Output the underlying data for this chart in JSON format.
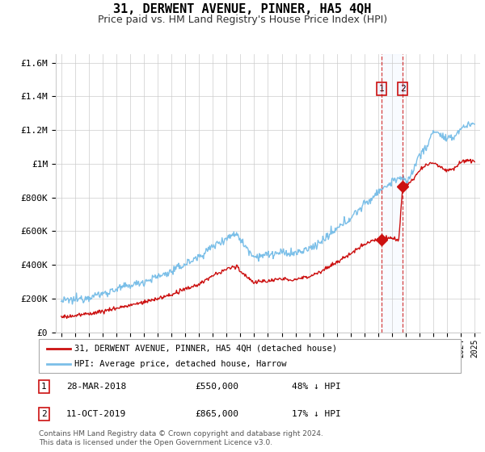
{
  "title": "31, DERWENT AVENUE, PINNER, HA5 4QH",
  "subtitle": "Price paid vs. HM Land Registry's House Price Index (HPI)",
  "title_fontsize": 11,
  "subtitle_fontsize": 9,
  "ylabel_ticks": [
    "£0",
    "£200K",
    "£400K",
    "£600K",
    "£800K",
    "£1M",
    "£1.2M",
    "£1.4M",
    "£1.6M"
  ],
  "ytick_values": [
    0,
    200000,
    400000,
    600000,
    800000,
    1000000,
    1200000,
    1400000,
    1600000
  ],
  "ylim": [
    0,
    1650000
  ],
  "hpi_color": "#7bbfe8",
  "price_color": "#cc1111",
  "shade_color": "#ddeeff",
  "transaction1_date": "28-MAR-2018",
  "transaction1_price": 550000,
  "transaction1_pct": "48% ↓ HPI",
  "transaction2_date": "11-OCT-2019",
  "transaction2_price": 865000,
  "transaction2_pct": "17% ↓ HPI",
  "legend_label1": "31, DERWENT AVENUE, PINNER, HA5 4QH (detached house)",
  "legend_label2": "HPI: Average price, detached house, Harrow",
  "footer": "Contains HM Land Registry data © Crown copyright and database right 2024.\nThis data is licensed under the Open Government Licence v3.0.",
  "transaction1_x": 2018.23,
  "transaction2_x": 2019.78
}
